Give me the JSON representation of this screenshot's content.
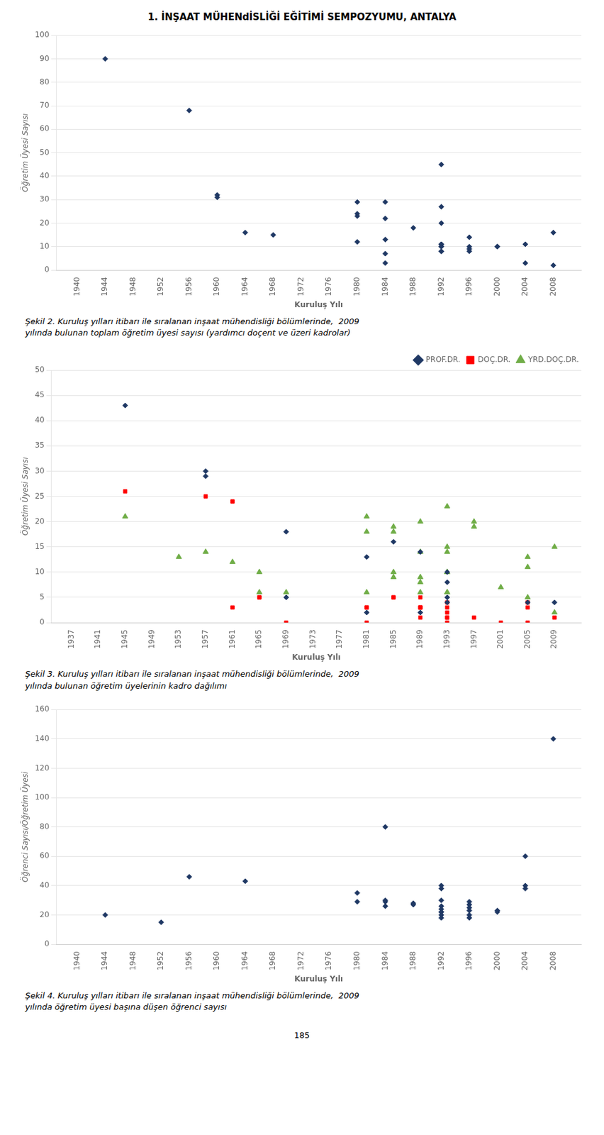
{
  "title": "1. İNŞAAT MÜHENdİSLİĞİ EĞİTİMİ SEMPOZYUMU, ANTALYA",
  "annotations": [
    "185"
  ],
  "chart_data": [
    {
      "type": "scatter",
      "xlabel": "Kuruluş Yılı",
      "ylabel": "Öğretim Üyesi Sayısı",
      "xlim": [
        1937,
        2012
      ],
      "xticks": [
        1940,
        1944,
        1948,
        1952,
        1956,
        1960,
        1964,
        1968,
        1972,
        1976,
        1980,
        1984,
        1988,
        1992,
        1996,
        2000,
        2004,
        2008
      ],
      "ylim": [
        0,
        100
      ],
      "yticks": [
        0,
        10,
        20,
        30,
        40,
        50,
        60,
        70,
        80,
        90,
        100
      ],
      "grid": "y",
      "color": "#1F3864",
      "marker": "diamond",
      "x": [
        1944,
        1956,
        1960,
        1960,
        1964,
        1968,
        1980,
        1980,
        1980,
        1980,
        1984,
        1984,
        1984,
        1984,
        1984,
        1988,
        1992,
        1992,
        1992,
        1992,
        1992,
        1992,
        1992,
        1992,
        1992,
        1996,
        1996,
        1996,
        1996,
        2000,
        2000,
        2004,
        2004,
        2008,
        2008
      ],
      "values": [
        90,
        68,
        31,
        32,
        16,
        15,
        29,
        24,
        23,
        12,
        7,
        13,
        3,
        22,
        29,
        18,
        45,
        27,
        11,
        10,
        8,
        8,
        10,
        11,
        20,
        14,
        10,
        9,
        8,
        10,
        10,
        3,
        11,
        16,
        2
      ],
      "annotations": [
        "Şekil 2. Kuruluş yılları itibarı ile sıralanan inşaat mühendisliği bölümlerinde,  2009",
        "yılında bulunan toplam öğretim üyesi sayısı (yardımcı doçent ve üzeri kadrolar)"
      ]
    },
    {
      "type": "scatter",
      "xlabel": "Kuruluş Yılı",
      "ylabel": "Öğretim Üyesi Sayısı",
      "xlim": [
        1934,
        2013
      ],
      "xticks": [
        1937,
        1941,
        1945,
        1949,
        1953,
        1957,
        1961,
        1965,
        1969,
        1973,
        1977,
        1981,
        1985,
        1989,
        1993,
        1997,
        2001,
        2005,
        2009
      ],
      "ylim": [
        0,
        50
      ],
      "yticks": [
        0,
        5,
        10,
        15,
        20,
        25,
        30,
        35,
        40,
        45,
        50
      ],
      "grid": "y",
      "legend": "upper right",
      "series": [
        {
          "name": "PROF.DR.",
          "color": "#1F3864",
          "marker": "diamond",
          "x": [
            1945,
            1957,
            1957,
            1969,
            1969,
            1981,
            1981,
            1985,
            1989,
            1989,
            1993,
            1993,
            1993,
            1993,
            2005,
            2009
          ],
          "values": [
            43,
            30,
            29,
            18,
            5,
            13,
            2,
            16,
            14,
            2,
            10,
            8,
            5,
            4,
            4,
            4
          ]
        },
        {
          "name": "DOÇ.DR.",
          "color": "#FF0000",
          "marker": "square",
          "x": [
            1945,
            1957,
            1961,
            1961,
            1965,
            1965,
            1969,
            1981,
            1981,
            1981,
            1985,
            1985,
            1989,
            1989,
            1989,
            1989,
            1989,
            1993,
            1993,
            1993,
            1993,
            1993,
            1993,
            1997,
            2001,
            2005,
            2005,
            2005,
            2009
          ],
          "values": [
            26,
            25,
            24,
            3,
            5,
            5,
            0,
            3,
            0,
            3,
            5,
            5,
            5,
            3,
            3,
            1,
            3,
            0,
            3,
            1,
            1,
            4,
            2,
            1,
            0,
            3,
            4,
            0,
            1
          ]
        },
        {
          "name": "YRD.DOÇ.DR.",
          "color": "#70AD47",
          "marker": "triangle",
          "x": [
            1945,
            1953,
            1957,
            1961,
            1965,
            1965,
            1969,
            1981,
            1981,
            1981,
            1985,
            1985,
            1985,
            1985,
            1989,
            1989,
            1989,
            1989,
            1989,
            1993,
            1993,
            1993,
            1993,
            1993,
            1993,
            1993,
            1997,
            1997,
            2001,
            2005,
            2005,
            2005,
            2009,
            2009
          ],
          "values": [
            21,
            13,
            14,
            12,
            6,
            10,
            6,
            6,
            18,
            21,
            9,
            10,
            18,
            19,
            20,
            14,
            8,
            6,
            9,
            6,
            15,
            10,
            10,
            14,
            6,
            23,
            19,
            20,
            7,
            13,
            11,
            5,
            15,
            2
          ]
        }
      ],
      "annotations": [
        "Şekil 3. Kuruluş yılları itibarı ile sıralanan inşaat mühendisliği bölümlerinde,  2009",
        "yılında bulunan öğretim üyelerinin kadro dağılımı"
      ]
    },
    {
      "type": "scatter",
      "xlabel": "Kuruluş Yılı",
      "ylabel": "Öğrenci Sayısı/Öğretim Üyesi",
      "xlim": [
        1937,
        2012
      ],
      "xticks": [
        1940,
        1944,
        1948,
        1952,
        1956,
        1960,
        1964,
        1968,
        1972,
        1976,
        1980,
        1984,
        1988,
        1992,
        1996,
        2000,
        2004,
        2008
      ],
      "ylim": [
        0,
        160
      ],
      "yticks": [
        0,
        20,
        40,
        60,
        80,
        100,
        120,
        140,
        160
      ],
      "grid": "y",
      "color": "#1F3864",
      "marker": "diamond",
      "x": [
        1944,
        1952,
        1956,
        1964,
        1980,
        1980,
        1984,
        1984,
        1984,
        1984,
        1988,
        1988,
        1992,
        1992,
        1992,
        1992,
        1992,
        1992,
        1992,
        1992,
        1992,
        1996,
        1996,
        1996,
        1996,
        1996,
        1996,
        2000,
        2000,
        2004,
        2004,
        2004,
        2008
      ],
      "values": [
        20,
        15,
        46,
        43,
        35,
        29,
        29,
        30,
        26,
        80,
        28,
        27,
        40,
        38,
        30,
        26,
        24,
        22,
        20,
        18,
        22,
        29,
        27,
        25,
        23,
        20,
        18,
        23,
        22,
        40,
        38,
        60,
        140
      ],
      "annotations": [
        "Şekil 4. Kuruluş yılları itibarı ile sıralanan inşaat mühendisliği bölümlerinde,  2009",
        "yılında öğretim üyesi başına düşen öğrenci sayısı"
      ]
    }
  ]
}
